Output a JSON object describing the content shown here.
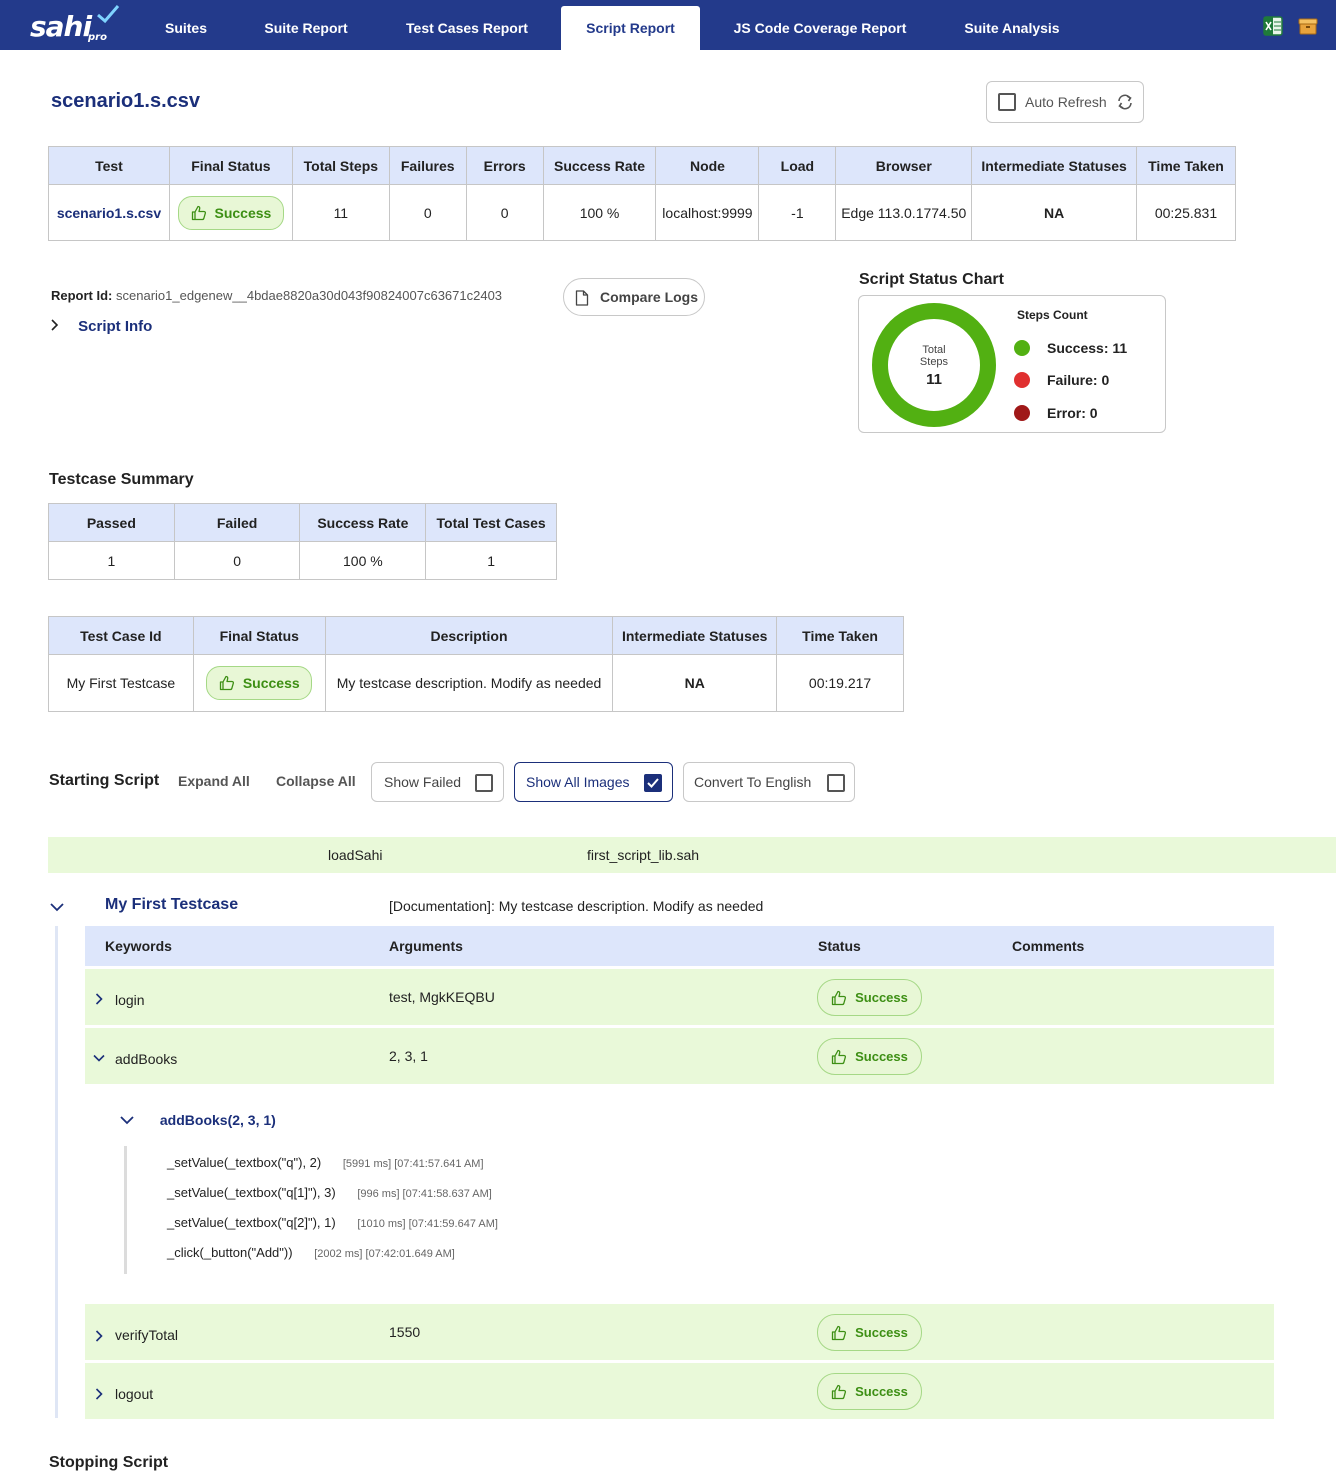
{
  "nav": {
    "logo": {
      "brand": "sahi",
      "sub": "pro"
    },
    "tabs": [
      {
        "label": "Suites"
      },
      {
        "label": "Suite Report"
      },
      {
        "label": "Test Cases Report"
      },
      {
        "label": "Script Report"
      },
      {
        "label": "JS Code Coverage Report"
      },
      {
        "label": "Suite Analysis"
      }
    ],
    "active_tab": "Script Report",
    "icons": [
      "excel-icon",
      "archive-icon"
    ]
  },
  "page": {
    "title": "scenario1.s.csv",
    "auto_refresh": {
      "label": "Auto Refresh",
      "checked": false
    }
  },
  "script_table": {
    "headers": [
      "Test",
      "Final Status",
      "Total Steps",
      "Failures",
      "Errors",
      "Success Rate",
      "Node",
      "Load",
      "Browser",
      "Intermediate Statuses",
      "Time Taken"
    ],
    "row": {
      "test": "scenario1.s.csv",
      "final_status": "Success",
      "total_steps": "11",
      "failures": "0",
      "errors": "0",
      "success_rate": "100 %",
      "node": "localhost:9999",
      "load": "-1",
      "browser": "Edge 113.0.1774.50",
      "intermediate_statuses": "NA",
      "time_taken": "00:25.831"
    }
  },
  "report": {
    "id_label": "Report Id:",
    "id_value": "scenario1_edgenew__4bdae8820a30d043f90824007c63671c2403",
    "script_info": "Script Info",
    "compare_logs": "Compare Logs"
  },
  "status_chart": {
    "title": "Script Status Chart",
    "center_label_1": "Total",
    "center_label_2": "Steps",
    "center_value": "11",
    "legend_title": "Steps Count",
    "success_label": "Success: 11",
    "failure_label": "Failure: 0",
    "error_label": "Error: 0",
    "colors": {
      "success": "#52b012",
      "failure": "#e03030",
      "error": "#a01818"
    }
  },
  "chart_data": {
    "type": "pie",
    "categories": [
      "Success",
      "Failure",
      "Error"
    ],
    "values": [
      11,
      0,
      0
    ],
    "title": "Script Status Chart"
  },
  "testcase_summary": {
    "title": "Testcase Summary",
    "headers": [
      "Passed",
      "Failed",
      "Success Rate",
      "Total Test Cases"
    ],
    "row": [
      "1",
      "0",
      "100 %",
      "1"
    ]
  },
  "testcase_table": {
    "headers": [
      "Test Case Id",
      "Final Status",
      "Description",
      "Intermediate Statuses",
      "Time Taken"
    ],
    "row": {
      "id": "My First Testcase",
      "final_status": "Success",
      "description": "My testcase description. Modify as needed",
      "intermediate_statuses": "NA",
      "time_taken": "00:19.217"
    }
  },
  "script_controls": {
    "title": "Starting Script",
    "expand_all": "Expand All",
    "collapse_all": "Collapse All",
    "show_failed": {
      "label": "Show Failed",
      "checked": false
    },
    "show_all_images": {
      "label": "Show All Images",
      "checked": true
    },
    "convert_to_english": {
      "label": "Convert To English",
      "checked": false
    }
  },
  "load_row": {
    "keyword": "loadSahi",
    "argument": "first_script_lib.sah"
  },
  "testcase": {
    "name": "My First Testcase",
    "documentation": "[Documentation]: My testcase description. Modify as needed",
    "columns": {
      "keywords": "Keywords",
      "arguments": "Arguments",
      "status": "Status",
      "comments": "Comments"
    },
    "rows": [
      {
        "keyword": "login",
        "arguments": "test, MgkKEQBU",
        "status": "Success",
        "expanded": false
      },
      {
        "keyword": "addBooks",
        "arguments": "2, 3, 1",
        "status": "Success",
        "expanded": true
      },
      {
        "keyword": "verifyTotal",
        "arguments": "1550",
        "status": "Success",
        "expanded": false
      },
      {
        "keyword": "logout",
        "arguments": "",
        "status": "Success",
        "expanded": false
      }
    ],
    "sub_call": {
      "title": "addBooks(2, 3, 1)",
      "steps": [
        {
          "code": "_setValue(_textbox(\"q\"), 2)",
          "meta": "[5991 ms] [07:41:57.641 AM]"
        },
        {
          "code": "_setValue(_textbox(\"q[1]\"), 3)",
          "meta": "[996 ms] [07:41:58.637 AM]"
        },
        {
          "code": "_setValue(_textbox(\"q[2]\"), 1)",
          "meta": "[1010 ms] [07:41:59.647 AM]"
        },
        {
          "code": "_click(_button(\"Add\"))",
          "meta": "[2002 ms] [07:42:01.649 AM]"
        }
      ]
    }
  },
  "stopping_script": {
    "title": "Stopping Script"
  }
}
